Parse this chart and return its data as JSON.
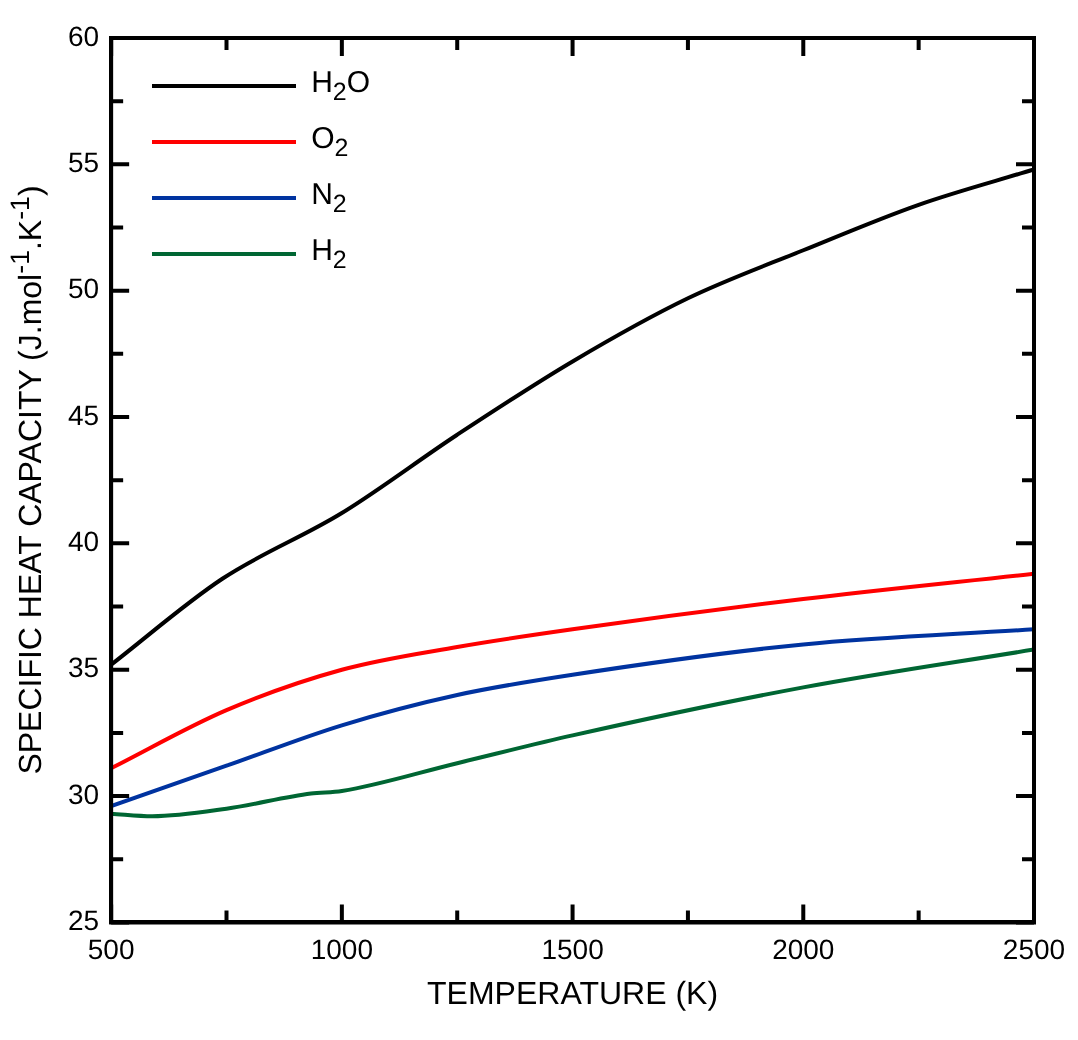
{
  "chart_data": {
    "type": "line",
    "xlabel": "TEMPERATURE (K)",
    "ylabel": "SPECIFIC HEAT CAPACITY (J.mol$^{-1}$.K$^{-1}$)",
    "xlim": [
      500,
      2500
    ],
    "ylim": [
      25,
      60
    ],
    "xticks": [
      500,
      {
        "value": 750,
        "label": null
      },
      1000,
      {
        "value": 1250,
        "label": null
      },
      1500,
      {
        "value": 1750,
        "label": null
      },
      2000,
      {
        "value": 2250,
        "label": null
      },
      2500
    ],
    "yticks": [
      25,
      {
        "value": 27.5,
        "label": null
      },
      30,
      {
        "value": 32.5,
        "label": null
      },
      35,
      {
        "value": 37.5,
        "label": null
      },
      40,
      {
        "value": 42.5,
        "label": null
      },
      45,
      {
        "value": 47.5,
        "label": null
      },
      50,
      {
        "value": 52.5,
        "label": null
      },
      55,
      {
        "value": 57.5,
        "label": null
      },
      60
    ],
    "legend": "top left",
    "marker": "none",
    "line_style": "solid",
    "grid": false,
    "series": [
      {
        "name": "H$_{2}$O",
        "color": "#000000",
        "x": [
          500,
          741,
          1000,
          1250,
          1500,
          1750,
          2000,
          2250,
          2500
        ],
        "values": [
          35.2,
          38.6,
          41.2,
          44.3,
          47.2,
          49.7,
          51.6,
          53.4,
          54.8
        ]
      },
      {
        "name": "O$_{2}$",
        "color": "#ff0000",
        "x": [
          500,
          750,
          1000,
          1250,
          1500,
          2000,
          2500
        ],
        "values": [
          31.1,
          33.4,
          35.0,
          35.9,
          36.6,
          37.8,
          38.8
        ]
      },
      {
        "name": "N$_{2}$",
        "color": "#0033a0",
        "x": [
          500,
          750,
          1000,
          1250,
          1500,
          2000,
          2500
        ],
        "values": [
          29.6,
          31.2,
          32.8,
          34.0,
          34.8,
          36.0,
          36.6
        ]
      },
      {
        "name": "H$_{2}$",
        "color": "#006633",
        "x": [
          500,
          589,
          750,
          933,
          1000,
          1250,
          1500,
          2000,
          2500
        ],
        "values": [
          29.3,
          29.2,
          29.5,
          30.1,
          30.2,
          31.3,
          32.4,
          34.3,
          35.8
        ]
      }
    ]
  }
}
